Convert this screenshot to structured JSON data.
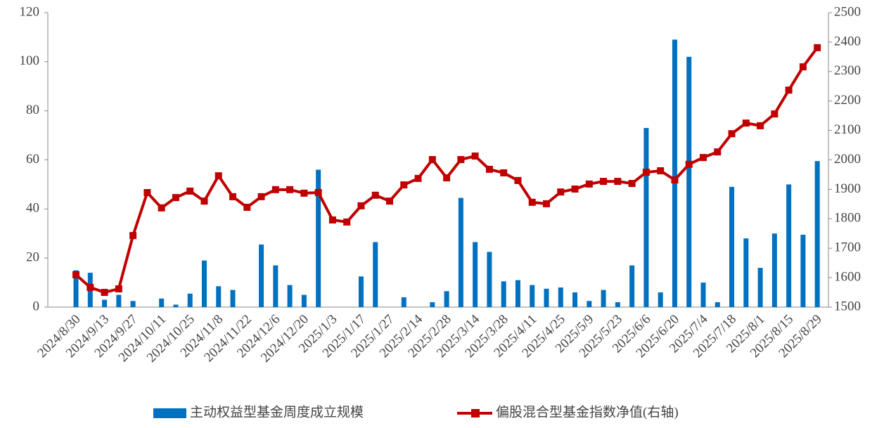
{
  "chart_data": {
    "type": "bar-line",
    "categories": [
      "2024/8/30",
      null,
      "2024/9/13",
      null,
      "2024/9/27",
      null,
      "2024/10/11",
      null,
      "2024/10/25",
      null,
      "2024/11/8",
      null,
      "2024/11/22",
      null,
      "2024/12/6",
      null,
      "2024/12/20",
      null,
      "2025/1/3",
      null,
      "2025/1/17",
      null,
      "2025/1/27",
      null,
      "2025/2/14",
      null,
      "2025/2/28",
      null,
      "2025/3/14",
      null,
      "2025/3/28",
      null,
      "2025/4/11",
      null,
      "2025/4/25",
      null,
      "2025/5/9",
      null,
      "2025/5/23",
      null,
      "2025/6/6",
      null,
      "2025/6/20",
      null,
      "2025/7/4",
      null,
      "2025/7/18",
      null,
      "2025/8/1",
      null,
      "2025/8/15",
      null,
      "2025/8/29"
    ],
    "series": [
      {
        "name": "主动权益型基金周度成立规模",
        "color": "#0070c0",
        "type": "bar",
        "values": [
          15,
          14,
          3,
          5,
          2.5,
          0,
          3.5,
          1,
          5.5,
          19,
          8.5,
          7,
          0,
          25.5,
          17,
          9,
          5,
          56,
          0,
          0,
          12.5,
          26.5,
          0,
          4,
          0,
          2,
          6.5,
          44.5,
          26.5,
          22.5,
          10.5,
          11,
          9,
          7.5,
          8,
          6,
          2.5,
          7,
          2,
          17,
          73,
          6,
          109,
          102,
          10,
          2,
          49,
          28,
          16,
          30,
          50,
          29.5,
          59.5
        ]
      },
      {
        "name": "偏股混合型基金指数净值(右轴)",
        "color": "#c00000",
        "type": "line",
        "axis": "y2",
        "values": [
          1610,
          1567,
          1550,
          1562,
          1743,
          1889,
          1837,
          1872,
          1894,
          1860,
          1946,
          1875,
          1839,
          1875,
          1899,
          1899,
          1887,
          1889,
          1796,
          1789,
          1844,
          1880,
          1860,
          1915,
          1937,
          2001,
          1939,
          2001,
          2013,
          1968,
          1956,
          1930,
          1856,
          1851,
          1891,
          1901,
          1918,
          1927,
          1927,
          1920,
          1958,
          1963,
          1932,
          1985,
          2008,
          2027,
          2089,
          2125,
          2116,
          2156,
          2237,
          2316,
          2381
        ]
      }
    ],
    "ylim": [
      0,
      120
    ],
    "yticks": [
      0,
      20,
      40,
      60,
      80,
      100,
      120
    ],
    "y2lim": [
      1500,
      2500
    ],
    "y2ticks": [
      1500,
      1600,
      1700,
      1800,
      1900,
      2000,
      2100,
      2200,
      2300,
      2400,
      2500
    ],
    "grid": false
  }
}
